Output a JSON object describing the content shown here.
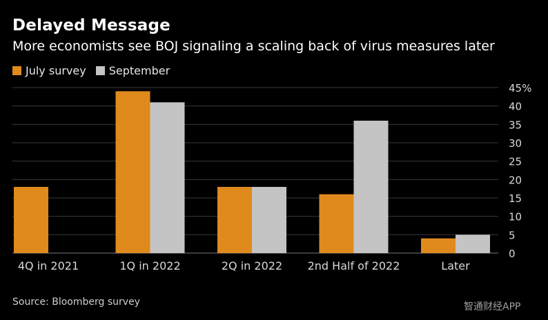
{
  "colors": {
    "background": "#000000",
    "july": "#e08a1e",
    "september": "#c4c4c4",
    "grid": "#3a3a3a",
    "text": "#ffffff",
    "tick_text": "#d9d9d9"
  },
  "source": "Source: Bloomberg survey",
  "watermark": "智通财经APP",
  "chart_data": {
    "type": "bar",
    "title": "Delayed Message",
    "subtitle": "More economists see BOJ signaling a scaling back of virus measures later",
    "categories": [
      "4Q in 2021",
      "1Q in 2022",
      "2Q in 2022",
      "2nd Half of 2022",
      "Later"
    ],
    "series": [
      {
        "name": "July survey",
        "values": [
          18,
          44,
          18,
          16,
          4
        ]
      },
      {
        "name": "September",
        "values": [
          0,
          41,
          18,
          36,
          5
        ]
      }
    ],
    "ylim": [
      0,
      45
    ],
    "yticks": [
      0,
      5,
      10,
      15,
      20,
      25,
      30,
      35,
      40,
      45
    ],
    "ytick_labels": [
      "0",
      "5",
      "10",
      "15",
      "20",
      "25",
      "30",
      "35",
      "40",
      "45%"
    ],
    "xlabel": "",
    "ylabel": "",
    "y_axis_position": "right",
    "grid": true,
    "legend": "top-left"
  }
}
